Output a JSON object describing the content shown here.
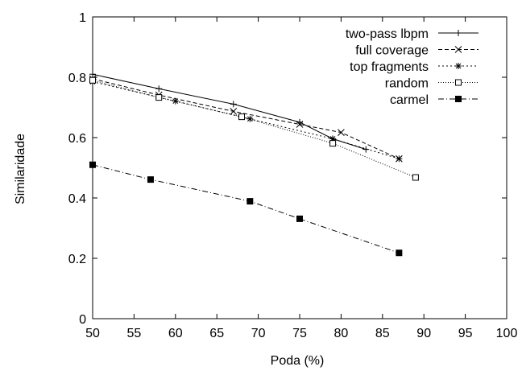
{
  "chart_data": {
    "type": "line",
    "title": "",
    "xlabel": "Poda (%)",
    "ylabel": "Similaridade",
    "xlim": [
      50,
      100
    ],
    "ylim": [
      0,
      1
    ],
    "xticks": [
      50,
      55,
      60,
      65,
      70,
      75,
      80,
      85,
      90,
      95,
      100
    ],
    "yticks": [
      0,
      0.2,
      0.4,
      0.6,
      0.8,
      1
    ],
    "ytick_labels": [
      "0",
      "0.2",
      "0.4",
      "0.6",
      "0.8",
      "1"
    ],
    "grid": false,
    "legend_position": "top-right",
    "series": [
      {
        "name": "two-pass lbpm",
        "color": "#000000",
        "line_style": "solid",
        "marker": "plus",
        "x": [
          50,
          58,
          67,
          75,
          79,
          83
        ],
        "y": [
          0.81,
          0.762,
          0.711,
          0.651,
          0.596,
          0.561
        ]
      },
      {
        "name": "full coverage",
        "color": "#000000",
        "line_style": "dashed",
        "marker": "cross",
        "x": [
          50,
          58,
          67,
          75,
          80,
          87
        ],
        "y": [
          0.795,
          0.741,
          0.687,
          0.644,
          0.617,
          0.53
        ]
      },
      {
        "name": "top fragments",
        "color": "#000000",
        "line_style": "dotted",
        "marker": "star",
        "x": [
          50,
          60,
          69,
          79,
          87
        ],
        "y": [
          0.785,
          0.721,
          0.662,
          0.596,
          0.53
        ]
      },
      {
        "name": "random",
        "color": "#000000",
        "line_style": "fine-dotted",
        "marker": "open-square",
        "x": [
          50,
          58,
          68,
          79,
          89
        ],
        "y": [
          0.79,
          0.733,
          0.669,
          0.581,
          0.468
        ]
      },
      {
        "name": "carmel",
        "color": "#000000",
        "line_style": "dash-dot",
        "marker": "filled-square",
        "x": [
          50,
          57,
          69,
          75,
          87
        ],
        "y": [
          0.51,
          0.461,
          0.389,
          0.331,
          0.218
        ]
      }
    ]
  }
}
